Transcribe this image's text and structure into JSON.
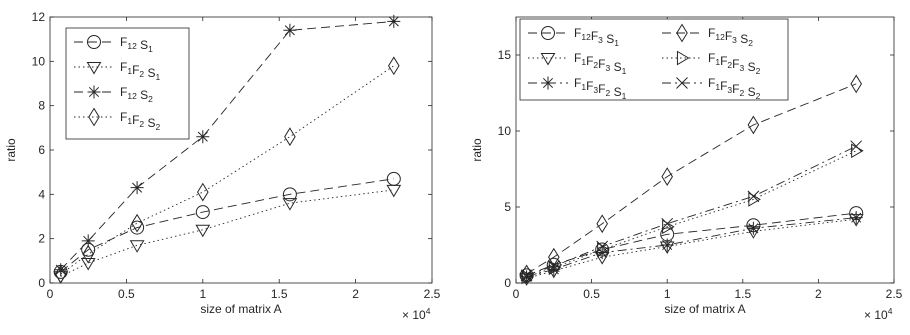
{
  "chart_data": [
    {
      "type": "line",
      "xlabel": "size of matrix A",
      "ylabel": "ratio",
      "xlim": [
        0,
        2.5
      ],
      "ylim": [
        0,
        12
      ],
      "x_multiplier": "× 10",
      "x_multiplier_exp": "4",
      "xticks": [
        "0",
        "0.5",
        "1",
        "1.5",
        "2",
        "2.5"
      ],
      "yticks": [
        "0",
        "2",
        "4",
        "6",
        "8",
        "10",
        "12"
      ],
      "grid": false,
      "legend_position": "top-left",
      "x": [
        0.07,
        0.25,
        0.57,
        1.0,
        1.57,
        2.25
      ],
      "series": [
        {
          "name": [
            [
              "F",
              "12"
            ],
            [
              " S",
              "1"
            ]
          ],
          "marker": "circle",
          "line": "dashed",
          "values": [
            0.5,
            1.5,
            2.5,
            3.2,
            4.0,
            4.7
          ]
        },
        {
          "name": [
            [
              "F",
              "1"
            ],
            [
              "F",
              "2"
            ],
            [
              " S",
              "1"
            ]
          ],
          "marker": "triangle-down",
          "line": "dotted",
          "values": [
            0.3,
            0.9,
            1.7,
            2.4,
            3.6,
            4.2
          ]
        },
        {
          "name": [
            [
              "F",
              "12"
            ],
            [
              " S",
              "2"
            ]
          ],
          "marker": "asterisk",
          "line": "dashed",
          "values": [
            0.6,
            1.9,
            4.3,
            6.6,
            11.4,
            11.8
          ]
        },
        {
          "name": [
            [
              "F",
              "1"
            ],
            [
              "F",
              "2"
            ],
            [
              " S",
              "2"
            ]
          ],
          "marker": "diamond",
          "line": "dotted",
          "values": [
            0.4,
            1.3,
            2.7,
            4.1,
            6.6,
            9.8
          ]
        }
      ]
    },
    {
      "type": "line",
      "xlabel": "size of matrix A",
      "ylabel": "ratio",
      "xlim": [
        0,
        2.5
      ],
      "ylim": [
        0,
        17.5
      ],
      "x_multiplier": "× 10",
      "x_multiplier_exp": "4",
      "xticks": [
        "0",
        "0.5",
        "1",
        "1.5",
        "2",
        "2.5"
      ],
      "yticks": [
        "0",
        "5",
        "10",
        "15"
      ],
      "grid": false,
      "legend_position": "top",
      "x": [
        0.07,
        0.25,
        0.57,
        1.0,
        1.57,
        2.25
      ],
      "series": [
        {
          "name": [
            [
              "F",
              "12"
            ],
            [
              "F",
              "3"
            ],
            [
              " S",
              "1"
            ]
          ],
          "marker": "circle",
          "line": "dashed",
          "values": [
            0.5,
            1.2,
            2.2,
            3.2,
            3.8,
            4.6
          ]
        },
        {
          "name": [
            [
              "F",
              "12"
            ],
            [
              "F",
              "3"
            ],
            [
              " S",
              "2"
            ]
          ],
          "marker": "diamond",
          "line": "dashed",
          "values": [
            0.6,
            1.7,
            3.9,
            7.0,
            10.4,
            13.1
          ]
        },
        {
          "name": [
            [
              "F",
              "1"
            ],
            [
              "F",
              "2"
            ],
            [
              "F",
              "3"
            ],
            [
              " S",
              "1"
            ]
          ],
          "marker": "triangle-down",
          "line": "dotted",
          "values": [
            0.3,
            0.8,
            1.7,
            2.4,
            3.4,
            4.2
          ]
        },
        {
          "name": [
            [
              "F",
              "1"
            ],
            [
              "F",
              "2"
            ],
            [
              "F",
              "3"
            ],
            [
              " S",
              "2"
            ]
          ],
          "marker": "triangle-right",
          "line": "dotted",
          "values": [
            0.4,
            1.0,
            2.2,
            3.7,
            5.5,
            8.7
          ]
        },
        {
          "name": [
            [
              "F",
              "1"
            ],
            [
              "F",
              "3"
            ],
            [
              "F",
              "2"
            ],
            [
              " S",
              "1"
            ]
          ],
          "marker": "asterisk",
          "line": "dashdot",
          "values": [
            0.4,
            0.9,
            2.0,
            2.5,
            3.6,
            4.3
          ]
        },
        {
          "name": [
            [
              "F",
              "1"
            ],
            [
              "F",
              "3"
            ],
            [
              "F",
              "2"
            ],
            [
              " S",
              "2"
            ]
          ],
          "marker": "cross",
          "line": "dashdot",
          "values": [
            0.5,
            1.1,
            2.4,
            3.9,
            5.7,
            9.0
          ]
        }
      ]
    }
  ]
}
